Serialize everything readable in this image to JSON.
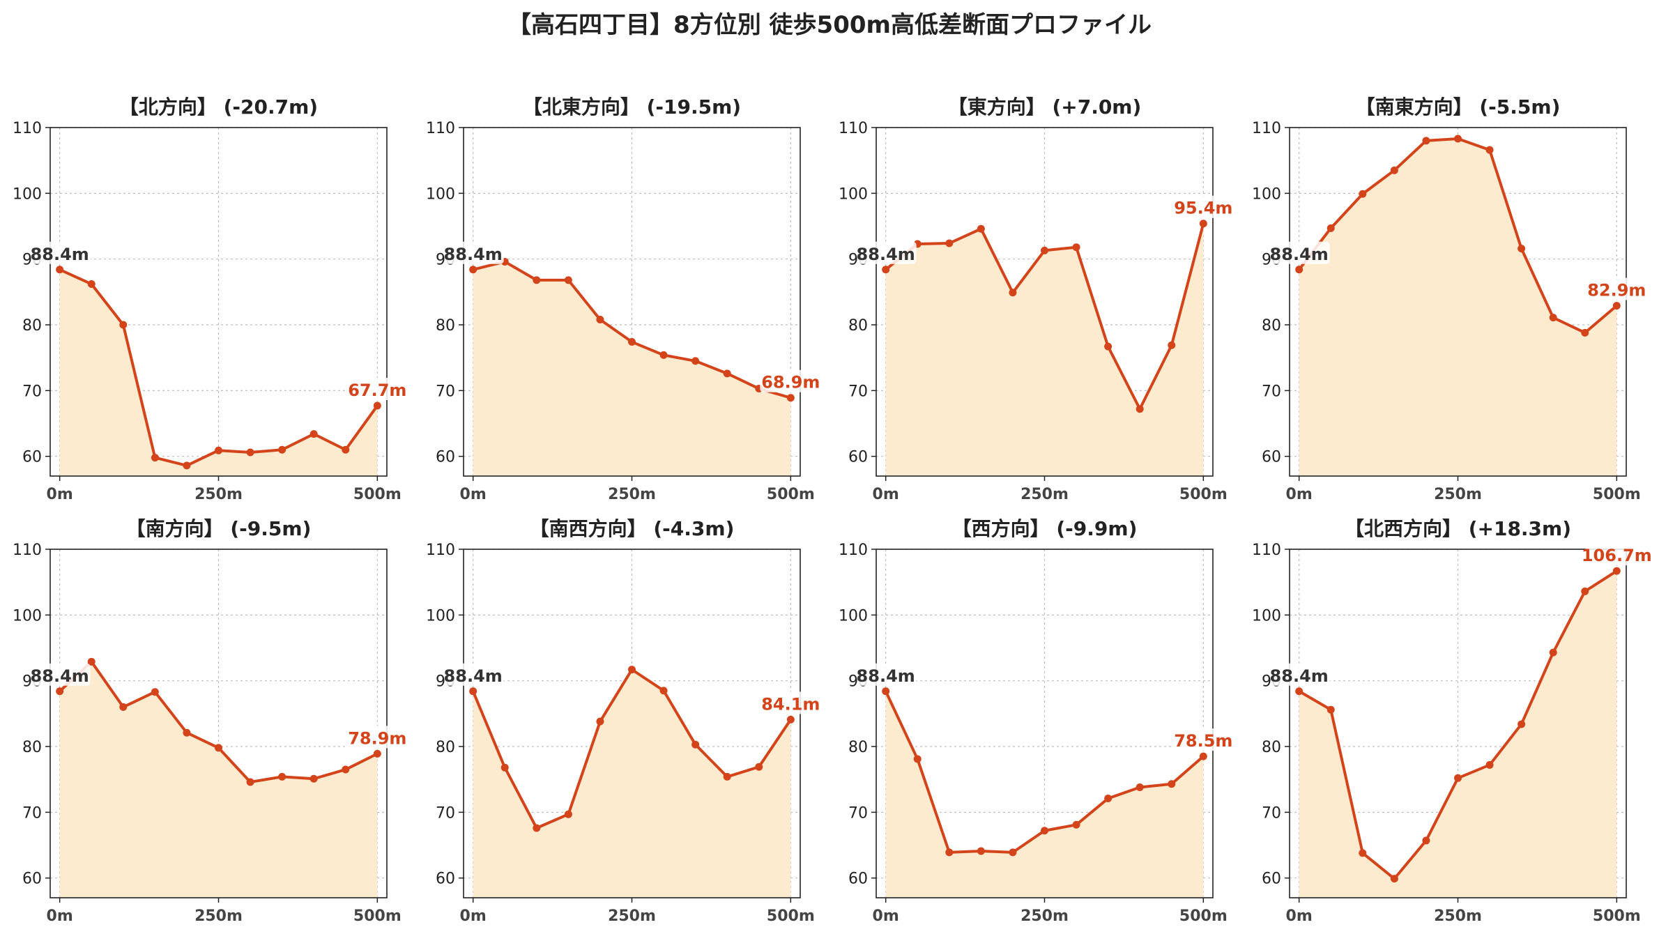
{
  "figure": {
    "title": "【高石四丁目】8方位別 徒歩500m高低差断面プロファイル",
    "colors": {
      "line": "#d4441a",
      "fill": "#fdebd0",
      "start_label": "#333333",
      "end_label": "#d4441a",
      "grid": "#bdbdbd"
    }
  },
  "chart_data": [
    {
      "type": "area",
      "title": "【北方向】 (-20.7m)",
      "x": [
        0,
        50,
        100,
        150,
        200,
        250,
        300,
        350,
        400,
        450,
        500
      ],
      "x_ticks": [
        0,
        250,
        500
      ],
      "x_tick_labels": [
        "0m",
        "250m",
        "500m"
      ],
      "y_ticks": [
        60,
        70,
        80,
        90,
        100,
        110
      ],
      "ylim": [
        57,
        110
      ],
      "xlim": [
        -15,
        515
      ],
      "grid": true,
      "values": [
        88.4,
        86.2,
        80.0,
        59.8,
        58.6,
        60.9,
        60.6,
        61.0,
        63.4,
        61.0,
        67.7
      ],
      "start_label": "88.4m",
      "end_label": "67.7m"
    },
    {
      "type": "area",
      "title": "【北東方向】 (-19.5m)",
      "x": [
        0,
        50,
        100,
        150,
        200,
        250,
        300,
        350,
        400,
        450,
        500
      ],
      "x_ticks": [
        0,
        250,
        500
      ],
      "x_tick_labels": [
        "0m",
        "250m",
        "500m"
      ],
      "y_ticks": [
        60,
        70,
        80,
        90,
        100,
        110
      ],
      "ylim": [
        57,
        110
      ],
      "xlim": [
        -15,
        515
      ],
      "grid": true,
      "values": [
        88.4,
        89.6,
        86.8,
        86.8,
        80.8,
        77.4,
        75.4,
        74.5,
        72.6,
        70.3,
        68.9
      ],
      "start_label": "88.4m",
      "end_label": "68.9m"
    },
    {
      "type": "area",
      "title": "【東方向】 (+7.0m)",
      "x": [
        0,
        50,
        100,
        150,
        200,
        250,
        300,
        350,
        400,
        450,
        500
      ],
      "x_ticks": [
        0,
        250,
        500
      ],
      "x_tick_labels": [
        "0m",
        "250m",
        "500m"
      ],
      "y_ticks": [
        60,
        70,
        80,
        90,
        100,
        110
      ],
      "ylim": [
        57,
        110
      ],
      "xlim": [
        -15,
        515
      ],
      "grid": true,
      "values": [
        88.4,
        92.3,
        92.4,
        94.6,
        84.9,
        91.3,
        91.8,
        76.7,
        67.2,
        76.9,
        95.4
      ],
      "start_label": "88.4m",
      "end_label": "95.4m"
    },
    {
      "type": "area",
      "title": "【南東方向】 (-5.5m)",
      "x": [
        0,
        50,
        100,
        150,
        200,
        250,
        300,
        350,
        400,
        450,
        500
      ],
      "x_ticks": [
        0,
        250,
        500
      ],
      "x_tick_labels": [
        "0m",
        "250m",
        "500m"
      ],
      "y_ticks": [
        60,
        70,
        80,
        90,
        100,
        110
      ],
      "ylim": [
        57,
        110
      ],
      "xlim": [
        -15,
        515
      ],
      "grid": true,
      "values": [
        88.4,
        94.7,
        99.9,
        103.5,
        108.0,
        108.3,
        106.6,
        91.6,
        81.1,
        78.8,
        82.9
      ],
      "start_label": "88.4m",
      "end_label": "82.9m"
    },
    {
      "type": "area",
      "title": "【南方向】 (-9.5m)",
      "x": [
        0,
        50,
        100,
        150,
        200,
        250,
        300,
        350,
        400,
        450,
        500
      ],
      "x_ticks": [
        0,
        250,
        500
      ],
      "x_tick_labels": [
        "0m",
        "250m",
        "500m"
      ],
      "y_ticks": [
        60,
        70,
        80,
        90,
        100,
        110
      ],
      "ylim": [
        57,
        110
      ],
      "xlim": [
        -15,
        515
      ],
      "grid": true,
      "values": [
        88.4,
        92.9,
        86.0,
        88.3,
        82.1,
        79.8,
        74.6,
        75.4,
        75.1,
        76.5,
        78.9
      ],
      "start_label": "88.4m",
      "end_label": "78.9m"
    },
    {
      "type": "area",
      "title": "【南西方向】 (-4.3m)",
      "x": [
        0,
        50,
        100,
        150,
        200,
        250,
        300,
        350,
        400,
        450,
        500
      ],
      "x_ticks": [
        0,
        250,
        500
      ],
      "x_tick_labels": [
        "0m",
        "250m",
        "500m"
      ],
      "y_ticks": [
        60,
        70,
        80,
        90,
        100,
        110
      ],
      "ylim": [
        57,
        110
      ],
      "xlim": [
        -15,
        515
      ],
      "grid": true,
      "values": [
        88.4,
        76.8,
        67.6,
        69.7,
        83.8,
        91.7,
        88.5,
        80.3,
        75.4,
        76.9,
        84.1
      ],
      "start_label": "88.4m",
      "end_label": "84.1m"
    },
    {
      "type": "area",
      "title": "【西方向】 (-9.9m)",
      "x": [
        0,
        50,
        100,
        150,
        200,
        250,
        300,
        350,
        400,
        450,
        500
      ],
      "x_ticks": [
        0,
        250,
        500
      ],
      "x_tick_labels": [
        "0m",
        "250m",
        "500m"
      ],
      "y_ticks": [
        60,
        70,
        80,
        90,
        100,
        110
      ],
      "ylim": [
        57,
        110
      ],
      "xlim": [
        -15,
        515
      ],
      "grid": true,
      "values": [
        88.4,
        78.1,
        63.9,
        64.1,
        63.9,
        67.2,
        68.1,
        72.1,
        73.8,
        74.3,
        78.5
      ],
      "start_label": "88.4m",
      "end_label": "78.5m"
    },
    {
      "type": "area",
      "title": "【北西方向】 (+18.3m)",
      "x": [
        0,
        50,
        100,
        150,
        200,
        250,
        300,
        350,
        400,
        450,
        500
      ],
      "x_ticks": [
        0,
        250,
        500
      ],
      "x_tick_labels": [
        "0m",
        "250m",
        "500m"
      ],
      "y_ticks": [
        60,
        70,
        80,
        90,
        100,
        110
      ],
      "ylim": [
        57,
        110
      ],
      "xlim": [
        -15,
        515
      ],
      "grid": true,
      "values": [
        88.4,
        85.6,
        63.8,
        59.9,
        65.7,
        75.2,
        77.2,
        83.4,
        94.3,
        103.6,
        106.7
      ],
      "start_label": "88.4m",
      "end_label": "106.7m"
    }
  ]
}
